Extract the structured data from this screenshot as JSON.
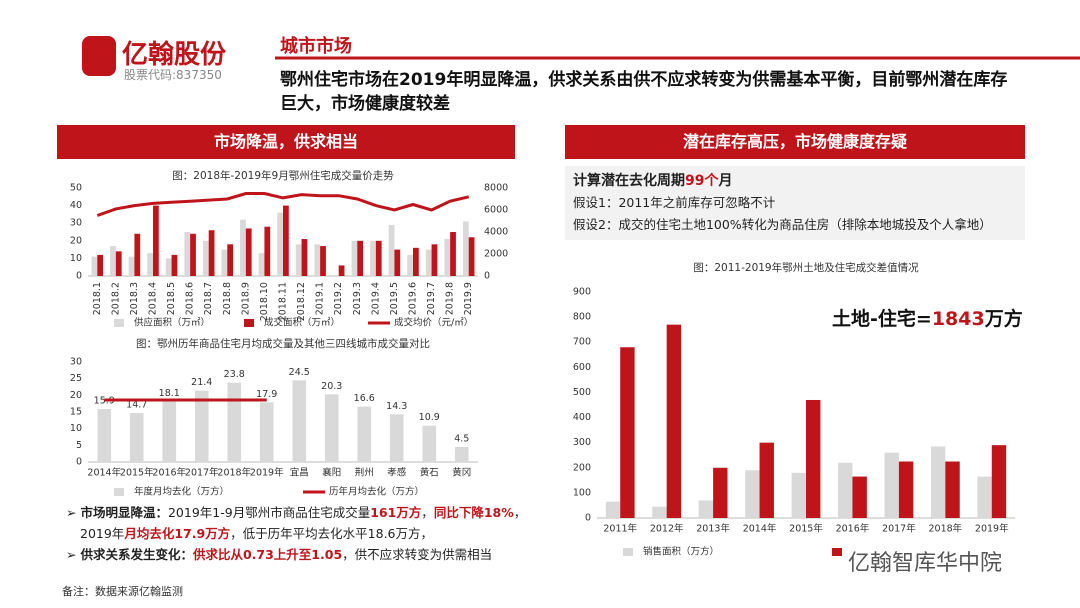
{
  "logo": {
    "name": "亿翰股份",
    "stock_code": "股票代码:837350"
  },
  "header": {
    "section": "城市市场",
    "headline": "鄂州住宅市场在2019年明显降温，供求关系由供不应求转变为供需基本平衡，目前鄂州潜在库存巨大，市场健康度较差"
  },
  "left_panel": {
    "title": "市场降温，供求相当",
    "bullets": [
      {
        "lead": "市场明显降温：",
        "parts": [
          "2019年1-9月鄂州市商品住宅成交量",
          "161万方",
          "，",
          "同比下降18%",
          "，",
          "2019年",
          "月均去化17.9万方",
          "，低于历年平均去化水平18.6万方，"
        ]
      },
      {
        "lead": "供求关系发生变化：",
        "parts": [
          "供求比从0.73上升至1.05",
          "，供不应求转变为供需相当"
        ]
      }
    ],
    "note": "备注：数据来源亿翰监测"
  },
  "right_panel": {
    "title": "潜在库存高压，市场健康度存疑",
    "cycle": {
      "text": "计算潜在去化周期",
      "number": "99个",
      "unit": "月"
    },
    "assumptions": [
      "假设1：2011年之前库存可忽略不计",
      "假设2：成交的住宅土地100%转化为商品住房（排除本地城投及个人拿地）"
    ]
  },
  "watermark": "亿翰智库华中院",
  "chart_data": [
    {
      "type": "bar",
      "title": "图：2018年-2019年9月鄂州住宅成交量价走势",
      "categories": [
        "2018.1",
        "2018.2",
        "2018.3",
        "2018.4",
        "2018.5",
        "2018.6",
        "2018.7",
        "2018.8",
        "2018.9",
        "2018.10",
        "2018.11",
        "2018.12",
        "2019.1",
        "2019.2",
        "2019.3",
        "2019.4",
        "2019.5",
        "2019.6",
        "2019.7",
        "2019.8",
        "2019.9"
      ],
      "series": [
        {
          "name": "供应面积（万㎡）",
          "color": "#d9d9d9",
          "values": [
            11,
            17,
            11,
            13,
            10,
            25,
            20,
            15,
            32,
            13,
            36,
            18,
            18,
            0,
            20,
            20,
            29,
            12,
            15,
            21,
            31
          ]
        },
        {
          "name": "成交面积（万㎡）",
          "color": "#c0141b",
          "values": [
            12,
            14,
            24,
            40,
            12,
            24,
            26,
            18,
            27,
            28,
            40,
            21,
            17,
            6,
            20,
            20,
            15,
            16,
            18,
            25,
            22
          ]
        },
        {
          "name": "成交均价（元/㎡）",
          "color": "#c0141b",
          "type": "line",
          "axis": "y2",
          "values": [
            5500,
            6100,
            6400,
            6600,
            6700,
            6800,
            6900,
            7000,
            7500,
            7500,
            7100,
            7400,
            7300,
            7300,
            7000,
            6400,
            6000,
            6500,
            6000,
            6800,
            7200
          ]
        }
      ],
      "ylim": [
        0,
        50
      ],
      "yticks": [
        0,
        10,
        20,
        30,
        40,
        50
      ],
      "y2lim": [
        0,
        8000
      ],
      "y2ticks": [
        0,
        2000,
        4000,
        6000,
        8000
      ],
      "grid": false
    },
    {
      "type": "bar",
      "title": "图：鄂州历年商品住宅月均成交量及其他三四线城市成交量对比",
      "categories": [
        "2014年",
        "2015年",
        "2016年",
        "2017年",
        "2018年",
        "2019年",
        "宜昌",
        "襄阳",
        "荆州",
        "孝感",
        "黄石",
        "黄冈"
      ],
      "series": [
        {
          "name": "年度月均去化（万方）",
          "color": "#d9d9d9",
          "values": [
            15.9,
            14.7,
            18.1,
            21.4,
            23.8,
            17.9,
            24.5,
            20.3,
            16.6,
            14.3,
            10.9,
            4.5
          ]
        },
        {
          "name": "历年月均去化（万方）",
          "color": "#c0141b",
          "type": "line",
          "values": [
            18.6,
            18.6,
            18.6,
            18.6,
            18.6,
            18.6,
            null,
            null,
            null,
            null,
            null,
            null
          ]
        }
      ],
      "ylim": [
        0,
        30
      ],
      "yticks": [
        0,
        5,
        10,
        15,
        20,
        25,
        30
      ],
      "grid": false,
      "data_labels": true
    },
    {
      "type": "bar",
      "title": "图：2011-2019年鄂州土地及住宅成交差值情况",
      "categories": [
        "2011年",
        "2012年",
        "2013年",
        "2014年",
        "2015年",
        "2016年",
        "2017年",
        "2018年",
        "2019年"
      ],
      "series": [
        {
          "name": "销售面积（万方）",
          "color": "#d9d9d9",
          "values": [
            65,
            45,
            70,
            190,
            180,
            220,
            260,
            285,
            165
          ]
        },
        {
          "color": "#c0141b",
          "values": [
            680,
            770,
            200,
            300,
            470,
            165,
            225,
            225,
            290
          ]
        }
      ],
      "ylim": [
        0,
        900
      ],
      "yticks": [
        0,
        100,
        200,
        300,
        400,
        500,
        600,
        700,
        800,
        900
      ],
      "grid": false,
      "annotation": {
        "text": "土地-住宅=",
        "number": "1843",
        "unit": "万方"
      }
    }
  ]
}
